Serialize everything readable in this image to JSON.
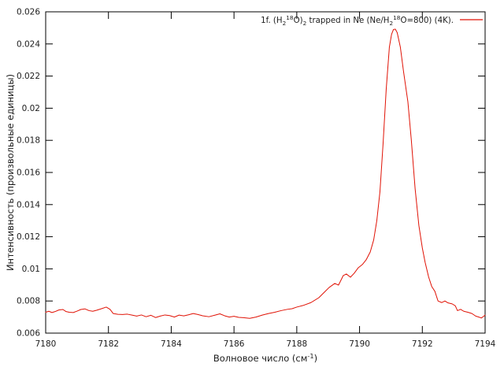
{
  "figure": {
    "background": "#ffffff",
    "axis_color": "#000000",
    "text_color": "#1c1c1c"
  },
  "chart_data": {
    "type": "line",
    "title": "",
    "grid": false,
    "legend": {
      "position": "top-right",
      "entries": [
        {
          "label_plain": "1f. (H2^18O)2 trapped in Ne (Ne/H2^18O=800) (4K).",
          "label_segments": [
            {
              "t": "1f. (H"
            },
            {
              "t": "2",
              "style": "sub"
            },
            {
              "t": "18",
              "style": "sup"
            },
            {
              "t": "O)"
            },
            {
              "t": "2",
              "style": "sub"
            },
            {
              "t": " trapped in Ne (Ne/H"
            },
            {
              "t": "2",
              "style": "sub"
            },
            {
              "t": "18",
              "style": "sup"
            },
            {
              "t": "O=800) (4K)."
            }
          ],
          "color": "#e01205"
        }
      ]
    },
    "xlabel_plain": "Волновое число (см^-1)",
    "xlabel_segments": [
      {
        "t": "Волновое число (см"
      },
      {
        "t": "-1",
        "style": "sup"
      },
      {
        "t": ")"
      }
    ],
    "ylabel": "Интенсивность (произвольные единицы)",
    "xlim": [
      7180,
      7194
    ],
    "ylim": [
      0.006,
      0.026
    ],
    "x_tick_values": [
      7180,
      7182,
      7184,
      7186,
      7188,
      7190,
      7192,
      7194
    ],
    "x_tick_labels": [
      "7180",
      "7182",
      "7184",
      "7186",
      "7188",
      "7190",
      "7192",
      "7194"
    ],
    "y_tick_values": [
      0.006,
      0.008,
      0.01,
      0.012,
      0.014,
      0.016,
      0.018,
      0.02,
      0.022,
      0.024,
      0.026
    ],
    "y_tick_labels": [
      "0.006",
      "0.008",
      "0.01",
      "0.012",
      "0.014",
      "0.016",
      "0.018",
      "0.02",
      "0.022",
      "0.024",
      "0.026"
    ],
    "series": [
      {
        "name": "1f. (H2-18O)2 trapped in Ne (Ne/H2-18O=800) (4K).",
        "color": "#e01205",
        "points": [
          [
            7180.0,
            0.0073
          ],
          [
            7180.1,
            0.00736
          ],
          [
            7180.2,
            0.00728
          ],
          [
            7180.3,
            0.00734
          ],
          [
            7180.42,
            0.00744
          ],
          [
            7180.55,
            0.00747
          ],
          [
            7180.65,
            0.00734
          ],
          [
            7180.75,
            0.0073
          ],
          [
            7180.88,
            0.00728
          ],
          [
            7181.0,
            0.00737
          ],
          [
            7181.12,
            0.00747
          ],
          [
            7181.25,
            0.00751
          ],
          [
            7181.38,
            0.0074
          ],
          [
            7181.5,
            0.00736
          ],
          [
            7181.62,
            0.00742
          ],
          [
            7181.75,
            0.0075
          ],
          [
            7181.93,
            0.00762
          ],
          [
            7182.05,
            0.00748
          ],
          [
            7182.15,
            0.00722
          ],
          [
            7182.3,
            0.00717
          ],
          [
            7182.45,
            0.00716
          ],
          [
            7182.6,
            0.00718
          ],
          [
            7182.75,
            0.00712
          ],
          [
            7182.9,
            0.00706
          ],
          [
            7183.05,
            0.00713
          ],
          [
            7183.2,
            0.00702
          ],
          [
            7183.35,
            0.00711
          ],
          [
            7183.5,
            0.00697
          ],
          [
            7183.65,
            0.00706
          ],
          [
            7183.8,
            0.00713
          ],
          [
            7183.95,
            0.00709
          ],
          [
            7184.1,
            0.007
          ],
          [
            7184.25,
            0.00712
          ],
          [
            7184.4,
            0.00707
          ],
          [
            7184.55,
            0.00714
          ],
          [
            7184.7,
            0.00722
          ],
          [
            7184.85,
            0.00716
          ],
          [
            7185.0,
            0.00708
          ],
          [
            7185.2,
            0.00702
          ],
          [
            7185.4,
            0.00712
          ],
          [
            7185.55,
            0.0072
          ],
          [
            7185.7,
            0.00708
          ],
          [
            7185.85,
            0.007
          ],
          [
            7186.0,
            0.00705
          ],
          [
            7186.15,
            0.00698
          ],
          [
            7186.3,
            0.00696
          ],
          [
            7186.5,
            0.00692
          ],
          [
            7186.7,
            0.007
          ],
          [
            7186.9,
            0.00712
          ],
          [
            7187.1,
            0.00722
          ],
          [
            7187.3,
            0.0073
          ],
          [
            7187.5,
            0.0074
          ],
          [
            7187.7,
            0.00748
          ],
          [
            7187.85,
            0.00752
          ],
          [
            7188.0,
            0.00762
          ],
          [
            7188.2,
            0.00772
          ],
          [
            7188.45,
            0.0079
          ],
          [
            7188.7,
            0.0082
          ],
          [
            7188.88,
            0.00855
          ],
          [
            7189.03,
            0.00884
          ],
          [
            7189.21,
            0.00909
          ],
          [
            7189.33,
            0.00899
          ],
          [
            7189.48,
            0.00958
          ],
          [
            7189.58,
            0.00968
          ],
          [
            7189.71,
            0.00948
          ],
          [
            7189.83,
            0.00973
          ],
          [
            7189.96,
            0.01007
          ],
          [
            7190.09,
            0.01027
          ],
          [
            7190.21,
            0.01056
          ],
          [
            7190.34,
            0.01105
          ],
          [
            7190.45,
            0.0118
          ],
          [
            7190.55,
            0.013
          ],
          [
            7190.65,
            0.0148
          ],
          [
            7190.75,
            0.0178
          ],
          [
            7190.85,
            0.0212
          ],
          [
            7190.95,
            0.0238
          ],
          [
            7191.02,
            0.0246
          ],
          [
            7191.08,
            0.0249
          ],
          [
            7191.14,
            0.02492
          ],
          [
            7191.2,
            0.0247
          ],
          [
            7191.3,
            0.0238
          ],
          [
            7191.4,
            0.0223
          ],
          [
            7191.54,
            0.0204
          ],
          [
            7191.65,
            0.018
          ],
          [
            7191.77,
            0.015
          ],
          [
            7191.89,
            0.0127
          ],
          [
            7192.0,
            0.0113
          ],
          [
            7192.09,
            0.0104
          ],
          [
            7192.2,
            0.0095
          ],
          [
            7192.3,
            0.0089
          ],
          [
            7192.4,
            0.0086
          ],
          [
            7192.5,
            0.008
          ],
          [
            7192.62,
            0.0079
          ],
          [
            7192.72,
            0.008
          ],
          [
            7192.82,
            0.00788
          ],
          [
            7192.95,
            0.00782
          ],
          [
            7193.05,
            0.0077
          ],
          [
            7193.12,
            0.0074
          ],
          [
            7193.22,
            0.00748
          ],
          [
            7193.32,
            0.00736
          ],
          [
            7193.45,
            0.0073
          ],
          [
            7193.58,
            0.00722
          ],
          [
            7193.7,
            0.00706
          ],
          [
            7193.8,
            0.007
          ],
          [
            7193.88,
            0.00694
          ],
          [
            7193.95,
            0.00704
          ],
          [
            7194.0,
            0.00712
          ]
        ]
      }
    ]
  }
}
